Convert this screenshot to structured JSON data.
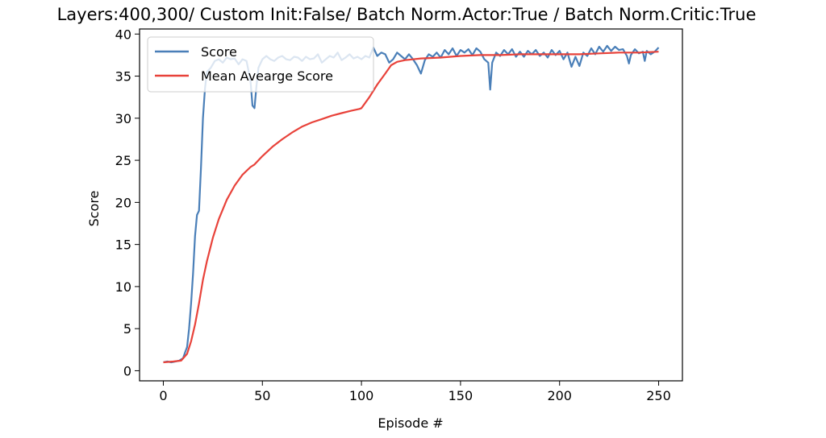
{
  "chart_data": {
    "type": "line",
    "title": "Layers:400,300/ Custom Init:False/ Batch Norm.Actor:True / Batch Norm.Critic:True",
    "xlabel": "Episode #",
    "ylabel": "Score",
    "xlim": [
      -12,
      262
    ],
    "ylim": [
      -1.2,
      40.6
    ],
    "xticks": [
      0,
      50,
      100,
      150,
      200,
      250
    ],
    "yticks": [
      0,
      5,
      10,
      15,
      20,
      25,
      30,
      35,
      40
    ],
    "grid": false,
    "legend_position": "upper left",
    "series": [
      {
        "name": "Score",
        "color": "#4a7fb8",
        "points": [
          [
            0,
            1.0
          ],
          [
            2,
            1.1
          ],
          [
            4,
            1.0
          ],
          [
            6,
            1.1
          ],
          [
            8,
            1.2
          ],
          [
            10,
            1.5
          ],
          [
            11,
            2.2
          ],
          [
            12,
            2.8
          ],
          [
            13,
            5.0
          ],
          [
            14,
            8.0
          ],
          [
            15,
            11.5
          ],
          [
            16,
            16.0
          ],
          [
            17,
            18.5
          ],
          [
            18,
            19.0
          ],
          [
            19,
            24.0
          ],
          [
            20,
            30.0
          ],
          [
            21,
            33.5
          ],
          [
            22,
            35.5
          ],
          [
            24,
            36.0
          ],
          [
            26,
            36.8
          ],
          [
            28,
            37.0
          ],
          [
            30,
            36.6
          ],
          [
            32,
            37.2
          ],
          [
            34,
            37.0
          ],
          [
            36,
            37.1
          ],
          [
            38,
            36.4
          ],
          [
            40,
            37.0
          ],
          [
            42,
            36.8
          ],
          [
            44,
            34.5
          ],
          [
            45,
            31.5
          ],
          [
            46,
            31.2
          ],
          [
            47,
            33.8
          ],
          [
            48,
            36.0
          ],
          [
            50,
            37.0
          ],
          [
            52,
            37.4
          ],
          [
            54,
            37.0
          ],
          [
            56,
            36.8
          ],
          [
            58,
            37.2
          ],
          [
            60,
            37.4
          ],
          [
            62,
            37.0
          ],
          [
            64,
            36.9
          ],
          [
            66,
            37.3
          ],
          [
            68,
            37.2
          ],
          [
            70,
            36.8
          ],
          [
            72,
            37.3
          ],
          [
            74,
            37.0
          ],
          [
            76,
            37.1
          ],
          [
            78,
            37.6
          ],
          [
            80,
            36.6
          ],
          [
            82,
            37.0
          ],
          [
            84,
            37.4
          ],
          [
            86,
            37.2
          ],
          [
            88,
            37.8
          ],
          [
            90,
            36.9
          ],
          [
            92,
            37.2
          ],
          [
            94,
            37.6
          ],
          [
            96,
            37.1
          ],
          [
            98,
            37.3
          ],
          [
            100,
            37.0
          ],
          [
            102,
            37.4
          ],
          [
            104,
            37.2
          ],
          [
            106,
            38.4
          ],
          [
            108,
            37.4
          ],
          [
            110,
            37.8
          ],
          [
            112,
            37.6
          ],
          [
            114,
            36.6
          ],
          [
            116,
            37.0
          ],
          [
            118,
            37.8
          ],
          [
            120,
            37.4
          ],
          [
            122,
            37.0
          ],
          [
            124,
            37.6
          ],
          [
            126,
            37.0
          ],
          [
            128,
            36.3
          ],
          [
            130,
            35.3
          ],
          [
            132,
            36.9
          ],
          [
            134,
            37.6
          ],
          [
            136,
            37.3
          ],
          [
            138,
            37.8
          ],
          [
            140,
            37.2
          ],
          [
            142,
            38.1
          ],
          [
            144,
            37.6
          ],
          [
            146,
            38.3
          ],
          [
            148,
            37.4
          ],
          [
            150,
            38.1
          ],
          [
            152,
            37.8
          ],
          [
            154,
            38.2
          ],
          [
            156,
            37.5
          ],
          [
            158,
            38.3
          ],
          [
            160,
            37.9
          ],
          [
            162,
            37.0
          ],
          [
            164,
            36.6
          ],
          [
            165,
            33.4
          ],
          [
            166,
            36.6
          ],
          [
            168,
            37.8
          ],
          [
            170,
            37.4
          ],
          [
            172,
            38.1
          ],
          [
            174,
            37.6
          ],
          [
            176,
            38.2
          ],
          [
            178,
            37.3
          ],
          [
            180,
            37.9
          ],
          [
            182,
            37.3
          ],
          [
            184,
            38.0
          ],
          [
            186,
            37.6
          ],
          [
            188,
            38.1
          ],
          [
            190,
            37.4
          ],
          [
            192,
            37.8
          ],
          [
            194,
            37.2
          ],
          [
            196,
            38.1
          ],
          [
            198,
            37.5
          ],
          [
            200,
            38.0
          ],
          [
            202,
            37.0
          ],
          [
            204,
            37.8
          ],
          [
            206,
            36.1
          ],
          [
            208,
            37.3
          ],
          [
            210,
            36.2
          ],
          [
            212,
            37.8
          ],
          [
            214,
            37.4
          ],
          [
            216,
            38.3
          ],
          [
            218,
            37.6
          ],
          [
            220,
            38.5
          ],
          [
            222,
            37.9
          ],
          [
            224,
            38.6
          ],
          [
            226,
            38.0
          ],
          [
            228,
            38.5
          ],
          [
            230,
            38.1
          ],
          [
            232,
            38.2
          ],
          [
            234,
            37.4
          ],
          [
            235,
            36.5
          ],
          [
            236,
            37.5
          ],
          [
            238,
            38.2
          ],
          [
            240,
            37.7
          ],
          [
            242,
            37.9
          ],
          [
            243,
            36.8
          ],
          [
            244,
            38.0
          ],
          [
            246,
            37.6
          ],
          [
            248,
            37.9
          ],
          [
            250,
            38.4
          ]
        ]
      },
      {
        "name": "Mean Avearge Score",
        "color": "#e8423a",
        "points": [
          [
            0,
            1.0
          ],
          [
            5,
            1.1
          ],
          [
            9,
            1.2
          ],
          [
            12,
            2.0
          ],
          [
            14,
            3.5
          ],
          [
            16,
            5.5
          ],
          [
            18,
            8.0
          ],
          [
            20,
            10.8
          ],
          [
            22,
            13.0
          ],
          [
            25,
            15.8
          ],
          [
            28,
            18.0
          ],
          [
            32,
            20.3
          ],
          [
            36,
            22.0
          ],
          [
            40,
            23.3
          ],
          [
            44,
            24.2
          ],
          [
            46,
            24.5
          ],
          [
            50,
            25.5
          ],
          [
            55,
            26.6
          ],
          [
            60,
            27.5
          ],
          [
            65,
            28.3
          ],
          [
            70,
            29.0
          ],
          [
            75,
            29.5
          ],
          [
            80,
            29.9
          ],
          [
            85,
            30.3
          ],
          [
            90,
            30.6
          ],
          [
            95,
            30.9
          ],
          [
            99,
            31.1
          ],
          [
            100,
            31.2
          ],
          [
            104,
            32.5
          ],
          [
            108,
            34.0
          ],
          [
            112,
            35.3
          ],
          [
            115,
            36.3
          ],
          [
            118,
            36.7
          ],
          [
            122,
            36.9
          ],
          [
            130,
            37.1
          ],
          [
            140,
            37.2
          ],
          [
            150,
            37.4
          ],
          [
            160,
            37.5
          ],
          [
            170,
            37.5
          ],
          [
            180,
            37.6
          ],
          [
            190,
            37.6
          ],
          [
            200,
            37.6
          ],
          [
            210,
            37.6
          ],
          [
            220,
            37.7
          ],
          [
            230,
            37.8
          ],
          [
            240,
            37.8
          ],
          [
            250,
            37.9
          ]
        ]
      }
    ]
  }
}
